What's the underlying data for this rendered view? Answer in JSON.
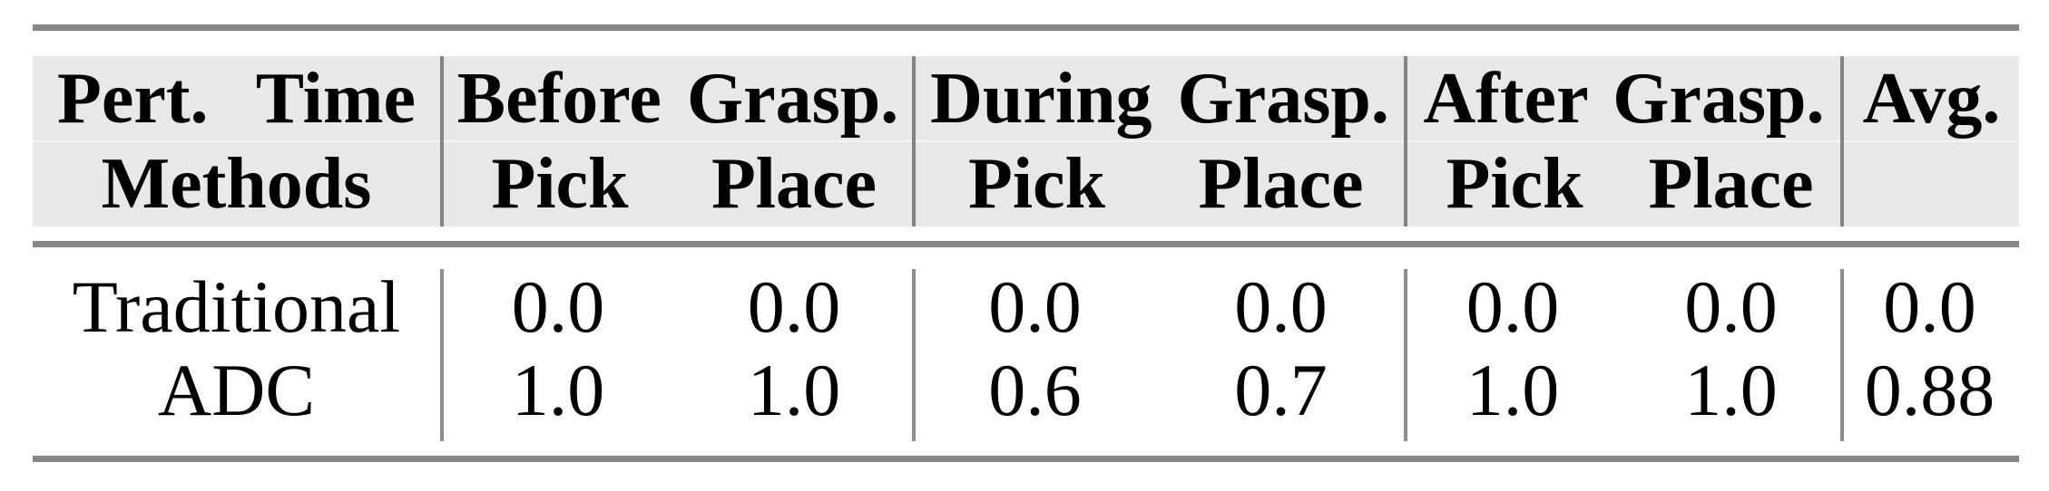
{
  "table": {
    "corner": {
      "line1": "Pert. Time",
      "line2": "Methods"
    },
    "groups": [
      {
        "label": "Before Grasp."
      },
      {
        "label": "During Grasp."
      },
      {
        "label": "After Grasp."
      }
    ],
    "sub_labels": [
      "Pick",
      "Place",
      "Pick",
      "Place",
      "Pick",
      "Place"
    ],
    "avg_label": "Avg.",
    "rows": [
      {
        "method": "Traditional",
        "values": [
          "0.0",
          "0.0",
          "0.0",
          "0.0",
          "0.0",
          "0.0",
          "0.0"
        ]
      },
      {
        "method": "ADC",
        "values": [
          "1.0",
          "1.0",
          "0.6",
          "0.7",
          "1.0",
          "1.0",
          "0.88"
        ]
      }
    ]
  },
  "colors": {
    "header_background": "#e8e8e8",
    "rule_gray": "#868686",
    "divider_gray": "#848484",
    "text": "#000000",
    "page_background": "#ffffff"
  }
}
